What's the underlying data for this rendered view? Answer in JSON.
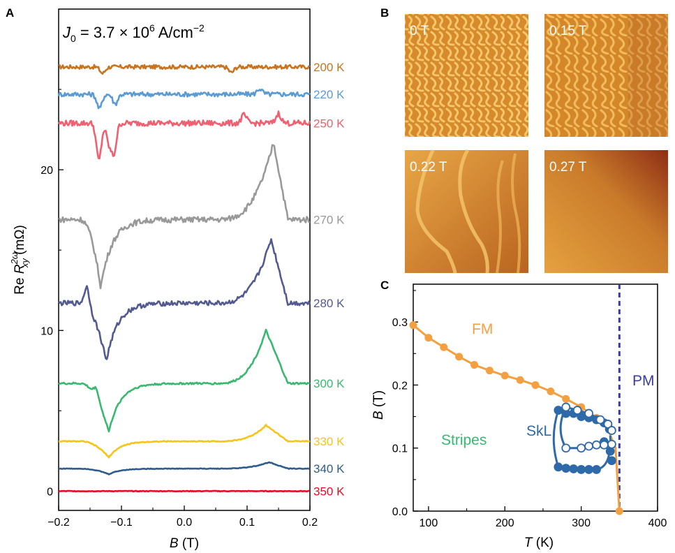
{
  "panels": {
    "a_label": "A",
    "b_label": "B",
    "c_label": "C"
  },
  "chart_data": [
    {
      "panel": "A",
      "type": "line",
      "annotation": "J_0 = 3.7 × 10^6 A/cm^-2",
      "annotation_parts": {
        "j": "J",
        "sub": "0",
        "eq": " = 3.7 × 10",
        "exp": "6",
        "unit": " A/cm",
        "unit_exp": "−2"
      },
      "xlabel": "B (T)",
      "xlabel_parts": {
        "var": "B",
        "unit": " (T)"
      },
      "ylabel": "Re R_xy^2ω (mΩ)",
      "ylabel_parts": {
        "pre": "Re ",
        "var": "R",
        "sup": "2ω",
        "sub": "xy",
        "unit": " (mΩ)"
      },
      "xlim": [
        -0.2,
        0.2
      ],
      "ylim": [
        -1.2,
        30.0
      ],
      "xticks": [
        "−0.2",
        "−0.1",
        "0.0",
        "0.1",
        "0.2"
      ],
      "xtick_values": [
        -0.2,
        -0.1,
        0.0,
        0.1,
        0.2
      ],
      "yticks": [
        "0",
        "10",
        "20"
      ],
      "ytick_values": [
        0,
        10,
        20
      ],
      "series": [
        {
          "name": "200 K",
          "color": "#c8741e",
          "baseline": 26.4,
          "shape": "noise",
          "amp": 0.25,
          "dips": [
            [
              -0.13,
              -0.4
            ],
            [
              0.075,
              -0.35
            ]
          ]
        },
        {
          "name": "220 K",
          "color": "#5b9bd5",
          "baseline": 24.7,
          "shape": "noise",
          "amp": 0.3,
          "dips": [
            [
              -0.135,
              -0.9
            ],
            [
              -0.11,
              -0.6
            ],
            [
              0.12,
              0.35
            ]
          ]
        },
        {
          "name": "250 K",
          "color": "#f06070",
          "baseline": 22.9,
          "shape": "spiky",
          "amp": 0.35,
          "dips": [
            [
              -0.136,
              -2.3
            ],
            [
              -0.12,
              -1.2
            ],
            [
              -0.112,
              -1.8
            ],
            [
              0.095,
              0.5
            ],
            [
              0.15,
              0.6
            ]
          ]
        },
        {
          "name": "270 K",
          "color": "#999999",
          "baseline": 16.9,
          "shape": "hysteresis",
          "dip": [
            -0.133,
            -4.2
          ],
          "peak": [
            0.142,
            4.8
          ],
          "amp": 0.35
        },
        {
          "name": "280 K",
          "color": "#535a8f",
          "baseline": 11.7,
          "shape": "hysteresis",
          "dip": [
            -0.124,
            -3.6
          ],
          "peak": [
            0.138,
            4.0
          ],
          "amp": 0.3,
          "pre": [
            -0.155,
            1.2
          ]
        },
        {
          "name": "300 K",
          "color": "#3ab870",
          "baseline": 6.7,
          "shape": "hysteresis",
          "dip": [
            -0.12,
            -3.0
          ],
          "peak": [
            0.13,
            3.3
          ],
          "amp": 0.12,
          "pre": [
            -0.14,
            0.6
          ]
        },
        {
          "name": "330 K",
          "color": "#f5c518",
          "baseline": 3.1,
          "shape": "hysteresis",
          "dip": [
            -0.12,
            -1.0
          ],
          "peak": [
            0.13,
            1.0
          ],
          "amp": 0.06
        },
        {
          "name": "340 K",
          "color": "#2f5c8c",
          "baseline": 1.4,
          "shape": "hysteresis",
          "dip": [
            -0.12,
            -0.35
          ],
          "peak": [
            0.135,
            0.4
          ],
          "amp": 0.04
        },
        {
          "name": "350 K",
          "color": "#e0101e",
          "baseline": 0.0,
          "shape": "flat",
          "amp": 0.04
        }
      ]
    },
    {
      "panel": "B",
      "type": "image",
      "tiles": [
        {
          "label": "0 T",
          "color": "#e6a445"
        },
        {
          "label": "0.15 T",
          "color": "#dd9a3e"
        },
        {
          "label": "0.22 T",
          "color": "#d98c30"
        },
        {
          "label": "0.27 T",
          "color": "#c86a20"
        }
      ]
    },
    {
      "panel": "C",
      "type": "scatter",
      "xlabel": "T (K)",
      "xlabel_parts": {
        "var": "T",
        "unit": " (K)"
      },
      "ylabel": "B (T)",
      "ylabel_parts": {
        "var": "B",
        "unit": " (T)"
      },
      "xlim": [
        80,
        400
      ],
      "ylim": [
        0.0,
        0.36
      ],
      "xticks": [
        "100",
        "200",
        "300",
        "400"
      ],
      "xtick_values": [
        100,
        200,
        300,
        400
      ],
      "yticks": [
        "0.0",
        "0.1",
        "0.2",
        "0.3"
      ],
      "ytick_values": [
        0.0,
        0.1,
        0.2,
        0.3
      ],
      "region_labels": {
        "fm": "FM",
        "pm": "PM",
        "stripes": "Stripes",
        "skl": "SkL"
      },
      "colors": {
        "fm": "#f5a040",
        "pm": "#3a3d9e",
        "stripes": "#3ab870",
        "skl": "#2e6aa8"
      },
      "pm_line_T": 350,
      "fm_boundary": {
        "x": [
          80,
          100,
          120,
          140,
          160,
          180,
          200,
          220,
          240,
          260,
          280,
          300,
          320,
          335,
          345,
          350
        ],
        "y": [
          0.295,
          0.275,
          0.26,
          0.245,
          0.232,
          0.223,
          0.215,
          0.208,
          0.2,
          0.19,
          0.178,
          0.165,
          0.148,
          0.13,
          0.1,
          0.0
        ]
      },
      "skl_upper_filled": {
        "x": [
          270,
          280,
          290,
          300,
          310,
          320,
          330,
          337
        ],
        "y": [
          0.16,
          0.155,
          0.155,
          0.15,
          0.148,
          0.145,
          0.14,
          0.13
        ]
      },
      "skl_upper_open": {
        "x": [
          280,
          295,
          310,
          325,
          335,
          340
        ],
        "y": [
          0.165,
          0.16,
          0.155,
          0.145,
          0.138,
          0.128
        ]
      },
      "skl_lower_filled": {
        "x": [
          270,
          280,
          290,
          300,
          310,
          320
        ],
        "y": [
          0.07,
          0.068,
          0.067,
          0.066,
          0.066,
          0.066
        ]
      },
      "skl_lower_open": {
        "x": [
          280,
          300,
          310,
          320,
          330,
          340
        ],
        "y": [
          0.1,
          0.1,
          0.103,
          0.105,
          0.105,
          0.106
        ]
      },
      "skl_right_filled": {
        "x": [
          330,
          338,
          340
        ],
        "y": [
          0.11,
          0.095,
          0.08
        ]
      }
    }
  ]
}
